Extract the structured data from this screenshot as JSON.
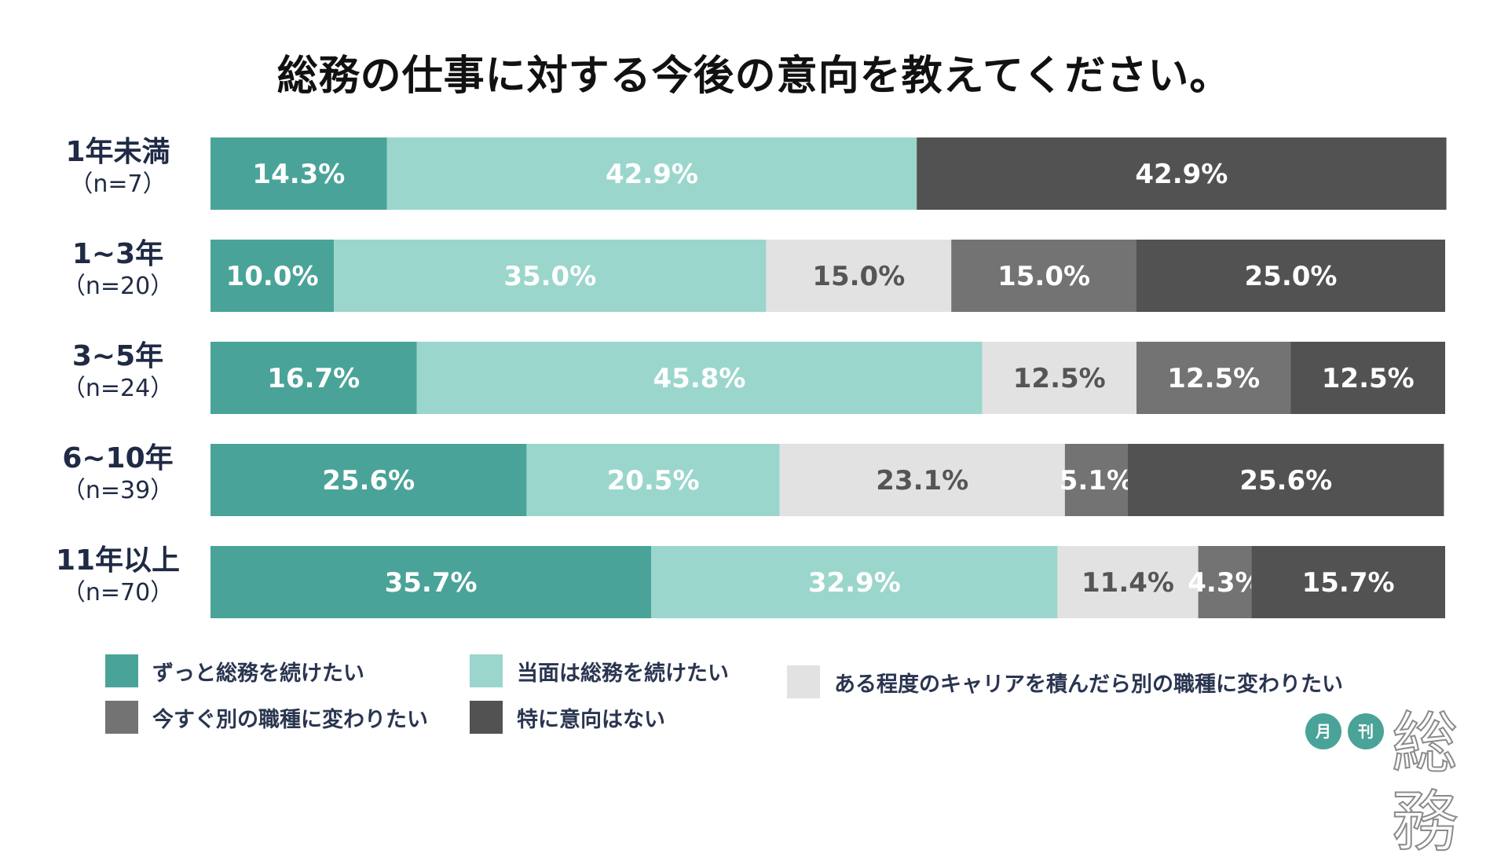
{
  "title": "総務の仕事に対する今後の意向を教えてください。",
  "chart_data": {
    "type": "bar",
    "orientation": "horizontal",
    "stacked": true,
    "percent_stacked": true,
    "title": "総務の仕事に対する今後の意向を教えてください。",
    "categories": [
      "1年未満",
      "1~3年",
      "3~5年",
      "6~10年",
      "11年以上"
    ],
    "sample_sizes": [
      "（n=7）",
      "（n=20）",
      "（n=24）",
      "（n=39）",
      "（n=70）"
    ],
    "series": [
      {
        "name": "ずっと総務を続けたい",
        "color": "#4aa398",
        "label_color": "#ffffff",
        "values": [
          14.3,
          10.0,
          16.7,
          25.6,
          35.7
        ]
      },
      {
        "name": "当面は総務を続けたい",
        "color": "#9bd6cc",
        "label_color": "#ffffff",
        "values": [
          42.9,
          35.0,
          45.8,
          20.5,
          32.9
        ]
      },
      {
        "name": "ある程度のキャリアを積んだら別の職種に変わりたい",
        "color": "#e2e2e2",
        "label_color": "#555555",
        "values": [
          0,
          15.0,
          12.5,
          23.1,
          11.4
        ]
      },
      {
        "name": "今すぐ別の職種に変わりたい",
        "color": "#737373",
        "label_color": "#ffffff",
        "values": [
          0,
          15.0,
          12.5,
          5.1,
          4.3
        ]
      },
      {
        "name": "特に意向はない",
        "color": "#525252",
        "label_color": "#ffffff",
        "values": [
          42.9,
          25.0,
          12.5,
          25.6,
          15.7
        ]
      }
    ],
    "value_format": "percent_1dp",
    "grid": false,
    "legend_position": "bottom"
  },
  "brand": {
    "circle1": "月",
    "circle2": "刊",
    "name": "総務",
    "circle_color": "#4aa398"
  }
}
